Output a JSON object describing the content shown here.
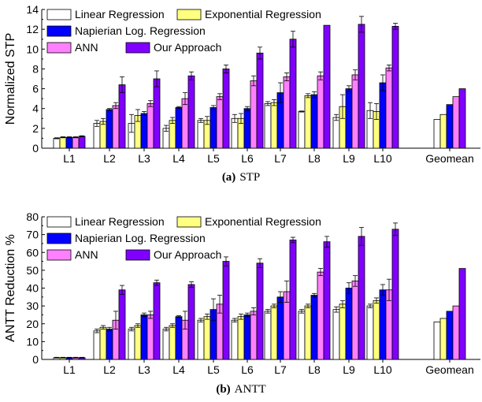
{
  "chart_data": [
    {
      "type": "bar",
      "panel": "(a)",
      "caption_label": "(a)",
      "caption_text": "STP",
      "ylabel": "Normalized STP",
      "ylim": [
        0,
        14
      ],
      "yticks": [
        0,
        2,
        4,
        6,
        8,
        10,
        12,
        14
      ],
      "categories": [
        "L1",
        "L2",
        "L3",
        "L4",
        "L5",
        "L6",
        "L7",
        "L8",
        "L9",
        "L10",
        "Geomean"
      ],
      "legend": "top-left",
      "series": [
        {
          "name": "Linear Regression",
          "color": "#ffffff",
          "values": [
            1.0,
            2.5,
            2.5,
            2.0,
            2.8,
            3.0,
            4.5,
            3.7,
            3.1,
            3.8,
            2.9
          ],
          "errors": [
            0.05,
            0.3,
            0.9,
            0.3,
            0.2,
            0.4,
            0.2,
            0.05,
            0.3,
            0.8,
            null
          ]
        },
        {
          "name": "Exponential Regression",
          "color": "#ffff80",
          "values": [
            1.1,
            2.7,
            3.3,
            2.8,
            2.8,
            3.0,
            4.6,
            5.3,
            4.2,
            3.7,
            3.4
          ],
          "errors": [
            0.05,
            0.3,
            0.6,
            0.3,
            0.4,
            0.5,
            0.3,
            0.2,
            1.2,
            0.8,
            null
          ]
        },
        {
          "name": "Napierian Log. Regression",
          "color": "#0000ff",
          "values": [
            1.1,
            3.9,
            3.5,
            4.1,
            4.1,
            4.0,
            5.6,
            5.4,
            6.0,
            6.6,
            4.4
          ],
          "errors": [
            0.05,
            0.1,
            0.2,
            0.1,
            0.2,
            0.2,
            1.0,
            0.3,
            0.3,
            0.8,
            null
          ]
        },
        {
          "name": "ANN",
          "color": "#ff80ff",
          "values": [
            1.1,
            4.3,
            4.5,
            5.0,
            5.2,
            6.8,
            7.2,
            7.3,
            7.4,
            8.1,
            5.2
          ],
          "errors": [
            0.05,
            0.3,
            0.3,
            0.6,
            0.3,
            0.5,
            0.4,
            0.4,
            0.5,
            0.3,
            null
          ]
        },
        {
          "name": "Our Approach",
          "color": "#8000ff",
          "values": [
            1.2,
            6.4,
            7.0,
            7.3,
            8.0,
            9.6,
            11.0,
            12.4,
            12.5,
            12.3,
            6.0
          ],
          "errors": [
            0.05,
            0.8,
            0.8,
            0.4,
            0.4,
            0.6,
            0.8,
            0.0,
            0.8,
            0.3,
            null
          ]
        }
      ]
    },
    {
      "type": "bar",
      "panel": "(b)",
      "caption_label": "(b)",
      "caption_text": "ANTT",
      "ylabel": "ANTT Reduction %",
      "ylim": [
        0,
        80
      ],
      "yticks": [
        0,
        10,
        20,
        30,
        40,
        50,
        60,
        70,
        80
      ],
      "categories": [
        "L1",
        "L2",
        "L3",
        "L4",
        "L5",
        "L6",
        "L7",
        "L8",
        "L9",
        "L10",
        "Geomean"
      ],
      "legend": "top-left",
      "series": [
        {
          "name": "Linear Regression",
          "color": "#ffffff",
          "values": [
            1,
            16,
            17,
            17,
            22,
            22,
            27,
            27,
            28,
            30,
            21
          ],
          "errors": [
            0.2,
            1,
            1,
            1,
            1,
            1,
            1,
            1,
            1.5,
            1,
            null
          ]
        },
        {
          "name": "Exponential Regression",
          "color": "#ffff80",
          "values": [
            1,
            18,
            19,
            19,
            24,
            24,
            30,
            30,
            31,
            33,
            23
          ],
          "errors": [
            0.2,
            1,
            1,
            1,
            1.5,
            1.5,
            1,
            1,
            2,
            1.5,
            null
          ]
        },
        {
          "name": "Napierian Log. Regression",
          "color": "#0000ff",
          "values": [
            1,
            17,
            25,
            24,
            28,
            25,
            35,
            36,
            40,
            39,
            27
          ],
          "errors": [
            0.2,
            1,
            1,
            0.5,
            6,
            1,
            3,
            1,
            3,
            3,
            null
          ]
        },
        {
          "name": "ANN",
          "color": "#ff80ff",
          "values": [
            1,
            22,
            25,
            22,
            31,
            27,
            38,
            49,
            44,
            39,
            30
          ],
          "errors": [
            0.2,
            5,
            2,
            5,
            5,
            2,
            6,
            2,
            3,
            6,
            null
          ]
        },
        {
          "name": "Our Approach",
          "color": "#8000ff",
          "values": [
            1,
            39,
            43,
            42,
            55,
            54,
            67,
            66,
            69,
            73,
            51
          ],
          "errors": [
            0.2,
            2.5,
            1.5,
            1.5,
            2.5,
            2.5,
            1.5,
            3,
            5,
            3.5,
            null
          ]
        }
      ]
    }
  ]
}
